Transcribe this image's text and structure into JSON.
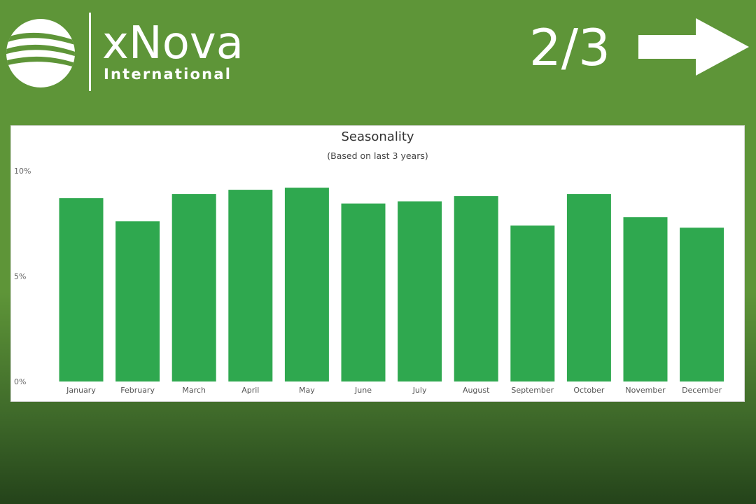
{
  "brand": {
    "name": "xNova",
    "subtitle": "International"
  },
  "pagination": {
    "current": "2/3"
  },
  "colors": {
    "background": "#5e9538",
    "bar": "#2fa84f",
    "text": "#333333"
  },
  "icons": {
    "logo": "xnova-globe-logo-icon",
    "next": "right-arrow-icon"
  },
  "chart_data": {
    "type": "bar",
    "title": "Seasonality",
    "subtitle": "(Based on last 3 years)",
    "xlabel": "",
    "ylabel": "",
    "categories": [
      "January",
      "February",
      "March",
      "April",
      "May",
      "June",
      "July",
      "August",
      "September",
      "October",
      "November",
      "December"
    ],
    "values": [
      8.7,
      7.6,
      8.9,
      9.1,
      9.2,
      8.45,
      8.55,
      8.8,
      7.4,
      8.9,
      7.8,
      7.3
    ],
    "yticks": [
      "0%",
      "5%",
      "10%"
    ],
    "ylim": [
      0,
      10
    ],
    "grid": false,
    "legend": false
  }
}
